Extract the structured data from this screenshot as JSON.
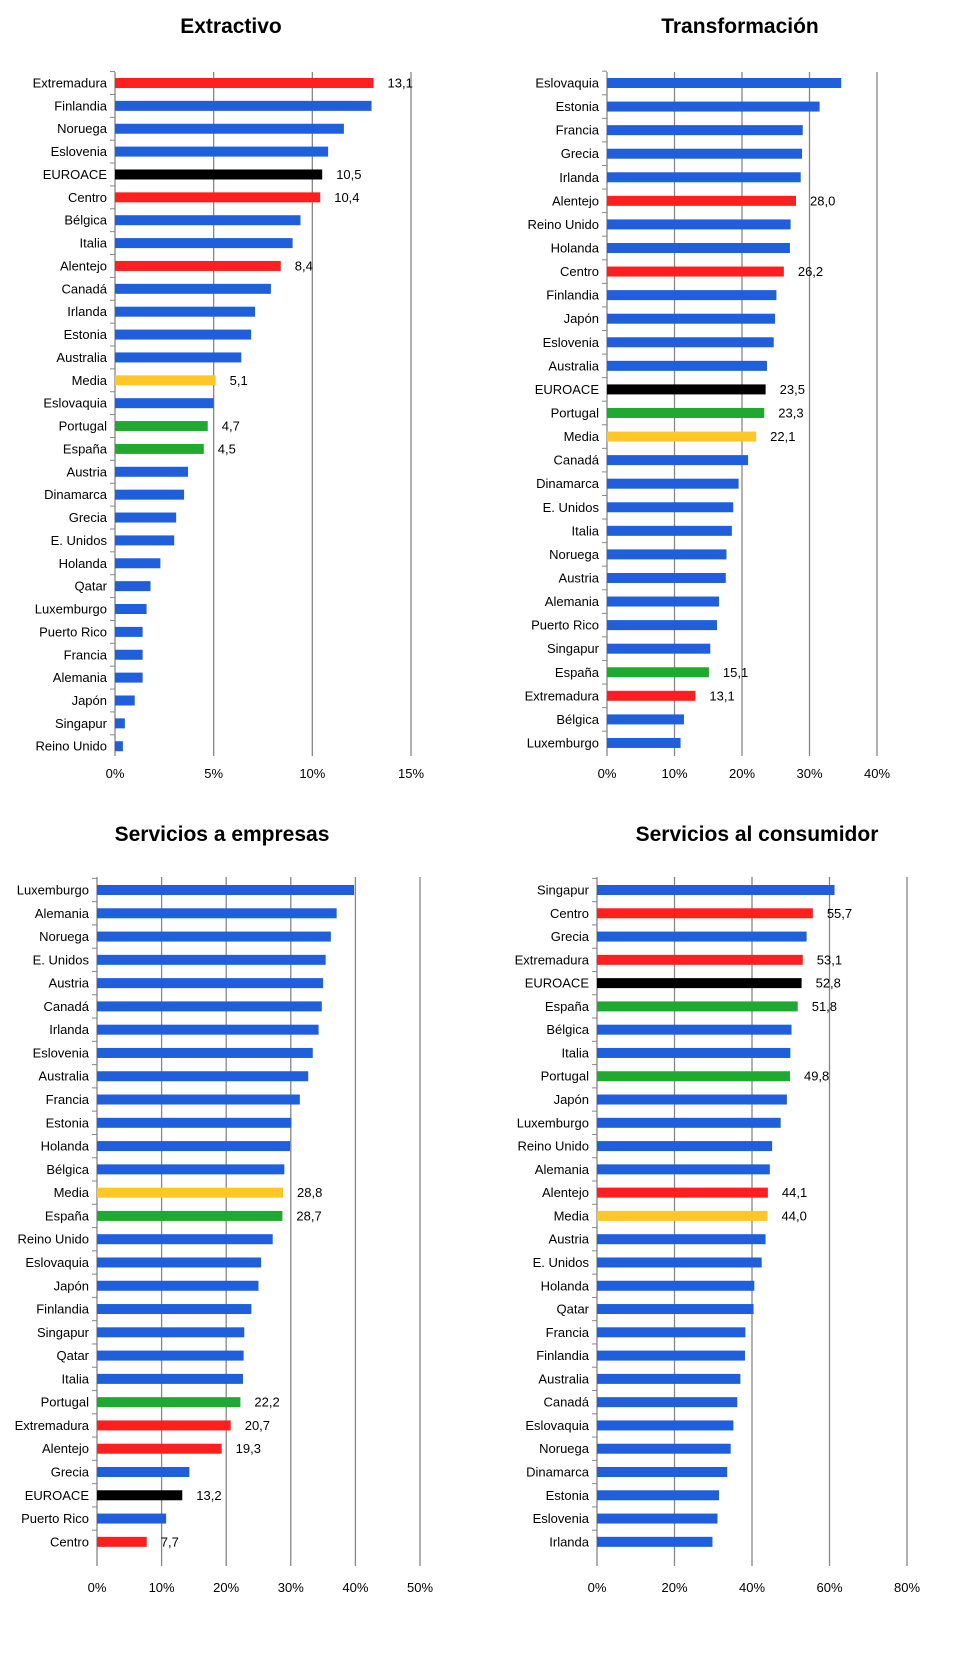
{
  "chart_data": [
    {
      "type": "bar",
      "orientation": "horizontal",
      "title": "Extractivo",
      "xlabel": "",
      "ylabel": "",
      "xlim": [
        0,
        15
      ],
      "ticks": [
        "0%",
        "5%",
        "10%",
        "15%"
      ],
      "grid": true,
      "categories": [
        "Extremadura",
        "Finlandia",
        "Noruega",
        "Eslovenia",
        "EUROACE",
        "Centro",
        "Bélgica",
        "Italia",
        "Alentejo",
        "Canadá",
        "Irlanda",
        "Estonia",
        "Australia",
        "Media",
        "Eslovaquia",
        "Portugal",
        "España",
        "Austria",
        "Dinamarca",
        "Grecia",
        "E. Unidos",
        "Holanda",
        "Qatar",
        "Luxemburgo",
        "Puerto Rico",
        "Francia",
        "Alemania",
        "Japón",
        "Singapur",
        "Reino Unido"
      ],
      "values": [
        13.1,
        13.0,
        11.6,
        10.8,
        10.5,
        10.4,
        9.4,
        9.0,
        8.4,
        7.9,
        7.1,
        6.9,
        6.4,
        5.1,
        5.0,
        4.7,
        4.5,
        3.7,
        3.5,
        3.1,
        3.0,
        2.3,
        1.8,
        1.6,
        1.4,
        1.4,
        1.4,
        1.0,
        0.5,
        0.4
      ],
      "data_labels": [
        "13,1",
        "",
        "",
        "",
        "10,5",
        "10,4",
        "",
        "",
        "8,4",
        "",
        "",
        "",
        "",
        "5,1",
        "",
        "4,7",
        "4,5",
        "",
        "",
        "",
        "",
        "",
        "",
        "",
        "",
        "",
        "",
        "",
        "",
        ""
      ],
      "colors": [
        "red",
        "blue",
        "blue",
        "blue",
        "black",
        "red",
        "blue",
        "blue",
        "red",
        "blue",
        "blue",
        "blue",
        "blue",
        "yellow",
        "blue",
        "green",
        "green",
        "blue",
        "blue",
        "blue",
        "blue",
        "blue",
        "blue",
        "blue",
        "blue",
        "blue",
        "blue",
        "blue",
        "blue",
        "blue"
      ]
    },
    {
      "type": "bar",
      "orientation": "horizontal",
      "title": "Transformación",
      "xlabel": "",
      "ylabel": "",
      "xlim": [
        0,
        40
      ],
      "ticks": [
        "0%",
        "10%",
        "20%",
        "30%",
        "40%"
      ],
      "grid": true,
      "categories": [
        "Eslovaquia",
        "Estonia",
        "Francia",
        "Grecia",
        "Irlanda",
        "Alentejo",
        "Reino Unido",
        "Holanda",
        "Centro",
        "Finlandia",
        "Japón",
        "Eslovenia",
        "Australia",
        "EUROACE",
        "Portugal",
        "Media",
        "Canadá",
        "Dinamarca",
        "E. Unidos",
        "Italia",
        "Noruega",
        "Austria",
        "Alemania",
        "Puerto Rico",
        "Singapur",
        "España",
        "Extremadura",
        "Bélgica",
        "Luxemburgo"
      ],
      "values": [
        34.7,
        31.5,
        29.0,
        28.9,
        28.7,
        28.0,
        27.2,
        27.1,
        26.2,
        25.1,
        24.9,
        24.7,
        23.7,
        23.5,
        23.3,
        22.1,
        20.9,
        19.5,
        18.7,
        18.5,
        17.7,
        17.6,
        16.6,
        16.3,
        15.3,
        15.1,
        13.1,
        11.4,
        10.9
      ],
      "data_labels": [
        "",
        "",
        "",
        "",
        "",
        "28,0",
        "",
        "",
        "26,2",
        "",
        "",
        "",
        "",
        "23,5",
        "23,3",
        "22,1",
        "",
        "",
        "",
        "",
        "",
        "",
        "",
        "",
        "",
        "15,1",
        "13,1",
        "",
        ""
      ],
      "colors": [
        "blue",
        "blue",
        "blue",
        "blue",
        "blue",
        "red",
        "blue",
        "blue",
        "red",
        "blue",
        "blue",
        "blue",
        "blue",
        "black",
        "green",
        "yellow",
        "blue",
        "blue",
        "blue",
        "blue",
        "blue",
        "blue",
        "blue",
        "blue",
        "blue",
        "green",
        "red",
        "blue",
        "blue"
      ]
    },
    {
      "type": "bar",
      "orientation": "horizontal",
      "title": "Servicios a empresas",
      "xlabel": "",
      "ylabel": "",
      "xlim": [
        0,
        50
      ],
      "ticks": [
        "0%",
        "10%",
        "20%",
        "30%",
        "40%",
        "50%"
      ],
      "grid": true,
      "categories": [
        "Luxemburgo",
        "Alemania",
        "Noruega",
        "E. Unidos",
        "Austria",
        "Canadá",
        "Irlanda",
        "Eslovenia",
        "Australia",
        "Francia",
        "Estonia",
        "Holanda",
        "Bélgica",
        "Media",
        "España",
        "Reino Unido",
        "Eslovaquia",
        "Japón",
        "Finlandia",
        "Singapur",
        "Qatar",
        "Italia",
        "Portugal",
        "Extremadura",
        "Alentejo",
        "Grecia",
        "EUROACE",
        "Puerto Rico",
        "Centro"
      ],
      "values": [
        39.8,
        37.1,
        36.2,
        35.4,
        35.0,
        34.8,
        34.3,
        33.4,
        32.7,
        31.4,
        30.1,
        29.9,
        29.0,
        28.8,
        28.7,
        27.2,
        25.4,
        25.0,
        23.9,
        22.8,
        22.7,
        22.6,
        22.2,
        20.7,
        19.3,
        14.3,
        13.2,
        10.7,
        7.7
      ],
      "data_labels": [
        "",
        "",
        "",
        "",
        "",
        "",
        "",
        "",
        "",
        "",
        "",
        "",
        "",
        "28,8",
        "28,7",
        "",
        "",
        "",
        "",
        "",
        "",
        "",
        "22,2",
        "20,7",
        "19,3",
        "",
        "13,2",
        "",
        "7,7"
      ],
      "colors": [
        "blue",
        "blue",
        "blue",
        "blue",
        "blue",
        "blue",
        "blue",
        "blue",
        "blue",
        "blue",
        "blue",
        "blue",
        "blue",
        "yellow",
        "green",
        "blue",
        "blue",
        "blue",
        "blue",
        "blue",
        "blue",
        "blue",
        "green",
        "red",
        "red",
        "blue",
        "black",
        "blue",
        "red"
      ]
    },
    {
      "type": "bar",
      "orientation": "horizontal",
      "title": "Servicios al consumidor",
      "xlabel": "",
      "ylabel": "",
      "xlim": [
        0,
        80
      ],
      "ticks": [
        "0%",
        "20%",
        "40%",
        "60%",
        "80%"
      ],
      "grid": true,
      "categories": [
        "Singapur",
        "Centro",
        "Grecia",
        "Extremadura",
        "EUROACE",
        "España",
        "Bélgica",
        "Italia",
        "Portugal",
        "Japón",
        "Luxemburgo",
        "Reino Unido",
        "Alemania",
        "Alentejo",
        "Media",
        "Austria",
        "E. Unidos",
        "Holanda",
        "Qatar",
        "Francia",
        "Finlandia",
        "Australia",
        "Canadá",
        "Eslovaquia",
        "Noruega",
        "Dinamarca",
        "Estonia",
        "Eslovenia",
        "Irlanda"
      ],
      "values": [
        61.3,
        55.7,
        54.1,
        53.1,
        52.8,
        51.8,
        50.2,
        49.9,
        49.8,
        49.0,
        47.4,
        45.2,
        44.6,
        44.1,
        44.0,
        43.5,
        42.5,
        40.6,
        40.4,
        38.3,
        38.2,
        37.0,
        36.2,
        35.2,
        34.5,
        33.6,
        31.5,
        31.1,
        29.8
      ],
      "data_labels": [
        "",
        "55,7",
        "",
        "53,1",
        "52,8",
        "51,8",
        "",
        "",
        "49,8",
        "",
        "",
        "",
        "",
        "44,1",
        "44,0",
        "",
        "",
        "",
        "",
        "",
        "",
        "",
        "",
        "",
        "",
        "",
        "",
        "",
        ""
      ],
      "colors": [
        "blue",
        "red",
        "blue",
        "red",
        "black",
        "green",
        "blue",
        "blue",
        "green",
        "blue",
        "blue",
        "blue",
        "blue",
        "red",
        "yellow",
        "blue",
        "blue",
        "blue",
        "blue",
        "blue",
        "blue",
        "blue",
        "blue",
        "blue",
        "blue",
        "blue",
        "blue",
        "blue",
        "blue"
      ]
    }
  ],
  "palette": {
    "blue": "#1f5fdc",
    "red": "#ff1f1f",
    "black": "#000000",
    "green": "#1eaa2e",
    "yellow": "#ffc627",
    "axis": "#878787"
  }
}
